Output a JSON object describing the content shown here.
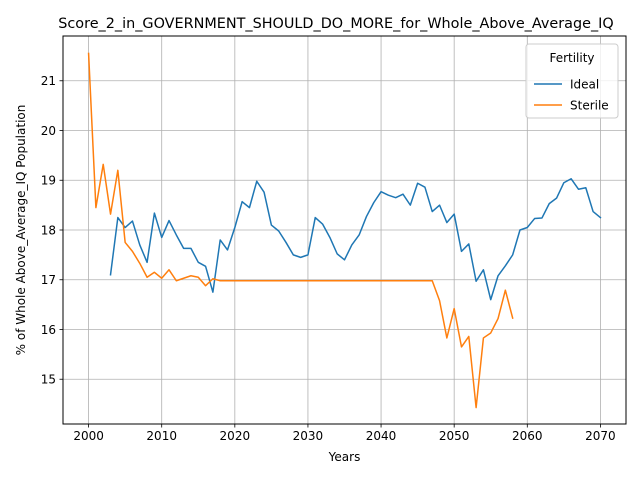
{
  "chart_data": {
    "type": "line",
    "title": "Score_2_in_GOVERNMENT_SHOULD_DO_MORE_for_Whole_Above_Average_IQ",
    "xlabel": "Years",
    "ylabel": "% of Whole Above_Average_IQ Population",
    "xlim": [
      1996.5,
      2073.5
    ],
    "ylim": [
      14.1,
      21.9
    ],
    "xticks": [
      2000,
      2010,
      2020,
      2030,
      2040,
      2050,
      2060,
      2070
    ],
    "yticks": [
      15,
      16,
      17,
      18,
      19,
      20,
      21
    ],
    "grid": true,
    "legend": {
      "title": "Fertility",
      "placement": "top-right"
    },
    "series": [
      {
        "name": "Ideal",
        "color": "#1f77b4",
        "x": [
          2003,
          2004,
          2005,
          2006,
          2007,
          2008,
          2009,
          2010,
          2011,
          2012,
          2013,
          2014,
          2015,
          2016,
          2017,
          2018,
          2019,
          2020,
          2021,
          2022,
          2023,
          2024,
          2025,
          2026,
          2027,
          2028,
          2029,
          2030,
          2031,
          2032,
          2033,
          2034,
          2035,
          2036,
          2037,
          2038,
          2039,
          2040,
          2041,
          2042,
          2043,
          2044,
          2045,
          2046,
          2047,
          2048,
          2049,
          2050,
          2051,
          2052,
          2053,
          2054,
          2055,
          2056,
          2057,
          2058,
          2059,
          2060,
          2061,
          2062,
          2063,
          2064,
          2065,
          2066,
          2067,
          2068,
          2069,
          2070
        ],
        "values": [
          17.1,
          18.25,
          18.05,
          18.18,
          17.7,
          17.35,
          18.34,
          17.85,
          18.19,
          17.9,
          17.63,
          17.63,
          17.35,
          17.27,
          16.75,
          17.8,
          17.6,
          18.05,
          18.57,
          18.45,
          18.98,
          18.76,
          18.1,
          17.98,
          17.75,
          17.5,
          17.45,
          17.5,
          18.25,
          18.12,
          17.85,
          17.52,
          17.4,
          17.7,
          17.9,
          18.27,
          18.55,
          18.77,
          18.7,
          18.65,
          18.72,
          18.5,
          18.94,
          18.86,
          18.37,
          18.5,
          18.15,
          18.32,
          17.57,
          17.72,
          16.97,
          17.2,
          16.6,
          17.08,
          17.28,
          17.5,
          18.0,
          18.05,
          18.23,
          18.24,
          18.53,
          18.64,
          18.95,
          19.03,
          18.82,
          18.85,
          18.37,
          18.25
        ]
      },
      {
        "name": "Sterile",
        "color": "#ff7f0e",
        "x": [
          2000,
          2001,
          2002,
          2003,
          2004,
          2005,
          2006,
          2007,
          2008,
          2009,
          2010,
          2011,
          2012,
          2013,
          2014,
          2015,
          2016,
          2017,
          2018,
          2019,
          2020,
          2021,
          2022,
          2023,
          2024,
          2025,
          2026,
          2027,
          2028,
          2029,
          2030,
          2031,
          2032,
          2033,
          2034,
          2035,
          2036,
          2037,
          2038,
          2039,
          2040,
          2041,
          2042,
          2043,
          2044,
          2045,
          2046,
          2047,
          2048,
          2049,
          2050,
          2051,
          2052,
          2053,
          2054,
          2055,
          2056,
          2057,
          2058
        ],
        "values": [
          21.55,
          18.45,
          19.32,
          18.32,
          19.2,
          17.75,
          17.57,
          17.33,
          17.05,
          17.15,
          17.03,
          17.2,
          16.98,
          17.03,
          17.08,
          17.05,
          16.88,
          17.02,
          16.98,
          16.98,
          16.98,
          16.98,
          16.98,
          16.98,
          16.98,
          16.98,
          16.98,
          16.98,
          16.98,
          16.98,
          16.98,
          16.98,
          16.98,
          16.98,
          16.98,
          16.98,
          16.98,
          16.98,
          16.98,
          16.98,
          16.98,
          16.98,
          16.98,
          16.98,
          16.98,
          16.98,
          16.98,
          16.98,
          16.58,
          15.83,
          16.42,
          15.65,
          15.86,
          14.43,
          15.83,
          15.93,
          16.22,
          16.79,
          16.23
        ]
      }
    ]
  }
}
